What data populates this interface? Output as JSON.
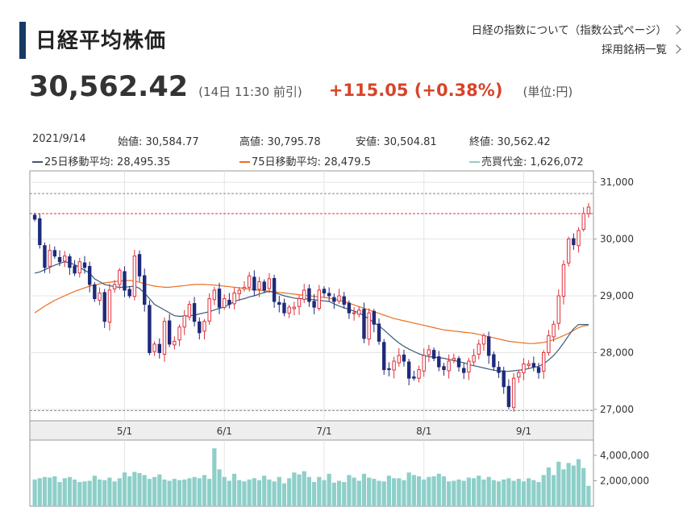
{
  "header": {
    "title": "日経平均株価",
    "link_index": "日経の指数について（指数公式ページ）",
    "link_components": "採用銘柄一覧"
  },
  "quote": {
    "price": "30,562.42",
    "time": "(14日 11:30 前引)",
    "change": "+115.05 (+0.38%)",
    "unit": "(単位:円)"
  },
  "info": {
    "date": "2021/9/14",
    "open": "始値: 30,584.77",
    "high": "高値: 30,795.78",
    "low": "安値: 30,504.81",
    "close": "終値: 30,562.42",
    "ma25": "25日移動平均: 28,495.35",
    "ma75": "75日移動平均: 28,479.5",
    "volume": "売買代金: 1,626,072"
  },
  "colors": {
    "up": "#e0303a",
    "down": "#1e2a7a",
    "ma25": "#3b5a75",
    "ma75": "#e87020",
    "volume": "#8ecfc9",
    "accent": "#163a64"
  },
  "chart_data": {
    "type": "candlestick",
    "ylim": [
      26800,
      31200
    ],
    "yticks": [
      "31,000",
      "30,000",
      "29,000",
      "28,000",
      "27,000"
    ],
    "ytick_values": [
      31000,
      30000,
      29000,
      28000,
      27000
    ],
    "xticks": [
      "5/1",
      "6/1",
      "7/1",
      "8/1",
      "9/1"
    ],
    "xtick_index": [
      18,
      38,
      58,
      78,
      98
    ],
    "closes": [
      30350,
      29900,
      29500,
      29800,
      29700,
      29600,
      29700,
      29500,
      29400,
      29600,
      29500,
      29200,
      28950,
      29050,
      28550,
      29100,
      29200,
      29450,
      29100,
      29000,
      29700,
      29350,
      28850,
      28000,
      28150,
      28000,
      28550,
      28150,
      28200,
      28450,
      28650,
      28850,
      28550,
      28350,
      28550,
      28950,
      29100,
      28800,
      28950,
      28850,
      29050,
      29100,
      29150,
      29350,
      29100,
      29250,
      29100,
      29300,
      28900,
      28850,
      28700,
      28800,
      28800,
      28950,
      29100,
      28900,
      28800,
      29100,
      29050,
      29000,
      28900,
      29000,
      28850,
      28700,
      28700,
      28750,
      28250,
      28700,
      28500,
      28200,
      27700,
      27700,
      27850,
      27950,
      27850,
      27550,
      27550,
      27700,
      27950,
      28050,
      27900,
      27750,
      27700,
      27850,
      27900,
      27750,
      27650,
      27850,
      27950,
      28150,
      28300,
      27950,
      27750,
      27650,
      27400,
      27050,
      27550,
      27650,
      27800,
      27800,
      27750,
      27650,
      28000,
      28300,
      28500,
      29000,
      29550,
      30000,
      29900,
      30150,
      30450,
      30562
    ],
    "ma25": [
      29400,
      29420,
      29460,
      29500,
      29540,
      29570,
      29600,
      29580,
      29550,
      29500,
      29450,
      29400,
      29300,
      29250,
      29200,
      29180,
      29160,
      29150,
      29150,
      29160,
      29170,
      29130,
      29050,
      28950,
      28850,
      28800,
      28750,
      28700,
      28650,
      28640,
      28640,
      28650,
      28660,
      28680,
      28700,
      28720,
      28750,
      28780,
      28800,
      28850,
      28900,
      28930,
      28950,
      28980,
      29000,
      29030,
      29060,
      29080,
      29060,
      29030,
      29000,
      28980,
      28960,
      28950,
      28950,
      28940,
      28930,
      28920,
      28910,
      28900,
      28860,
      28820,
      28790,
      28760,
      28730,
      28700,
      28650,
      28590,
      28530,
      28470,
      28400,
      28320,
      28240,
      28170,
      28110,
      28060,
      28020,
      27980,
      27950,
      27930,
      27920,
      27910,
      27900,
      27880,
      27860,
      27840,
      27820,
      27790,
      27770,
      27750,
      27730,
      27710,
      27690,
      27680,
      27670,
      27670,
      27680,
      27690,
      27700,
      27720,
      27740,
      27760,
      27800,
      27870,
      27950,
      28050,
      28170,
      28300,
      28420,
      28495,
      28495,
      28495
    ],
    "ma75": [
      28700,
      28760,
      28820,
      28870,
      28920,
      28960,
      29000,
      29040,
      29080,
      29110,
      29140,
      29170,
      29190,
      29210,
      29230,
      29240,
      29250,
      29260,
      29270,
      29270,
      29260,
      29240,
      29210,
      29190,
      29170,
      29160,
      29150,
      29150,
      29160,
      29170,
      29180,
      29190,
      29200,
      29200,
      29200,
      29195,
      29190,
      29180,
      29170,
      29160,
      29150,
      29140,
      29130,
      29120,
      29110,
      29100,
      29090,
      29080,
      29070,
      29060,
      29050,
      29040,
      29030,
      29020,
      29010,
      29000,
      28990,
      28980,
      28970,
      28960,
      28940,
      28920,
      28900,
      28870,
      28840,
      28810,
      28780,
      28750,
      28720,
      28690,
      28660,
      28630,
      28600,
      28580,
      28560,
      28540,
      28520,
      28500,
      28480,
      28460,
      28440,
      28420,
      28400,
      28390,
      28380,
      28370,
      28360,
      28350,
      28340,
      28320,
      28300,
      28280,
      28260,
      28240,
      28220,
      28200,
      28190,
      28180,
      28170,
      28160,
      28160,
      28170,
      28180,
      28200,
      28230,
      28260,
      28300,
      28340,
      28390,
      28440,
      28470,
      28480
    ],
    "volume_ylim": [
      0,
      5200000
    ],
    "volume_yticks": [
      "4,000,000",
      "2,000,000"
    ],
    "volume_ytick_values": [
      4000000,
      2000000
    ],
    "volumes": [
      2100000,
      2200000,
      2300000,
      2250000,
      2350000,
      1900000,
      2200000,
      2300000,
      2100000,
      1900000,
      1950000,
      2000000,
      2400000,
      2100000,
      2050000,
      2250000,
      1950000,
      2200000,
      2650000,
      2350000,
      2700000,
      2600000,
      2450000,
      2150000,
      2300000,
      2500000,
      2100000,
      2000000,
      2150000,
      2050000,
      2100000,
      2200000,
      2300000,
      2200000,
      2450000,
      2150000,
      4550000,
      2900000,
      2300000,
      2000000,
      2550000,
      2050000,
      1950000,
      2100000,
      2200000,
      2050000,
      2400000,
      2100000,
      1950000,
      2300000,
      1800000,
      2200000,
      2650000,
      2500000,
      2750000,
      2300000,
      1900000,
      2300000,
      2050000,
      2550000,
      1850000,
      2000000,
      1900000,
      2450000,
      2250000,
      2000000,
      2550000,
      2250000,
      2150000,
      2000000,
      1950000,
      2400000,
      2200000,
      2200000,
      2050000,
      2650000,
      2450000,
      2350000,
      2100000,
      2300000,
      2350000,
      2550000,
      2350000,
      1950000,
      2000000,
      2100000,
      2000000,
      2250000,
      2200000,
      2400000,
      2100000,
      2300000,
      2050000,
      1950000,
      2100000,
      2200000,
      2000000,
      2150000,
      1950000,
      2200000,
      2050000,
      1900000,
      2450000,
      3050000,
      2450000,
      3500000,
      2900000,
      3400000,
      3200000,
      3700000,
      3000000,
      1600000
    ]
  }
}
